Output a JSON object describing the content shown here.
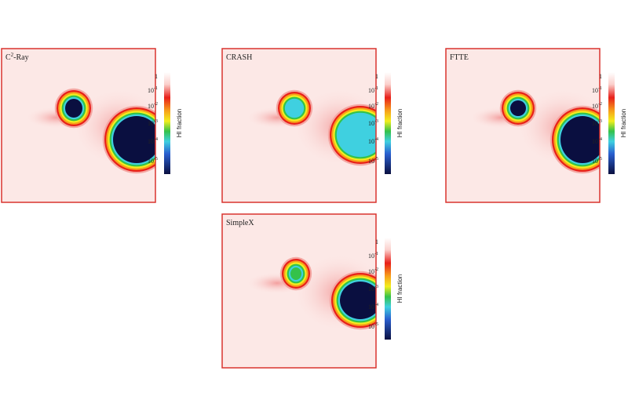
{
  "panels": [
    {
      "title": {
        "base": "C",
        "sup": "2",
        "rest": "-Ray"
      },
      "colorbar_label": "HI fraction",
      "colorbar_ticks": [
        {
          "base": "1"
        },
        {
          "base": "10",
          "exp": "-1"
        },
        {
          "base": "10",
          "exp": "-2"
        },
        {
          "base": "10",
          "exp": "-3"
        },
        {
          "base": "10",
          "exp": "-4"
        },
        {
          "base": "10",
          "exp": "-5"
        }
      ]
    },
    {
      "title": {
        "base": "CRASH"
      },
      "colorbar_label": "HI fraction",
      "colorbar_ticks": [
        {
          "base": "1"
        },
        {
          "base": "10",
          "exp": "-1"
        },
        {
          "base": "10",
          "exp": "-2"
        },
        {
          "base": "10",
          "exp": "-3"
        },
        {
          "base": "10",
          "exp": "-4"
        },
        {
          "base": "10",
          "exp": "-5"
        }
      ]
    },
    {
      "title": {
        "base": "FTTE"
      },
      "colorbar_label": "HI fraction",
      "colorbar_ticks": [
        {
          "base": "1"
        },
        {
          "base": "10",
          "exp": "-1"
        },
        {
          "base": "10",
          "exp": "-2"
        },
        {
          "base": "10",
          "exp": "-3"
        },
        {
          "base": "10",
          "exp": "-4"
        },
        {
          "base": "10",
          "exp": "-5"
        }
      ]
    },
    {
      "title": {
        "base": "SimpleX"
      },
      "colorbar_label": "HI fraction",
      "colorbar_ticks": [
        {
          "base": "1"
        },
        {
          "base": "10",
          "exp": "-1"
        },
        {
          "base": "10",
          "exp": "-2"
        },
        {
          "base": "10",
          "exp": "-3"
        },
        {
          "base": "10",
          "exp": "-4"
        },
        {
          "base": "10",
          "exp": "-5"
        }
      ]
    }
  ]
}
